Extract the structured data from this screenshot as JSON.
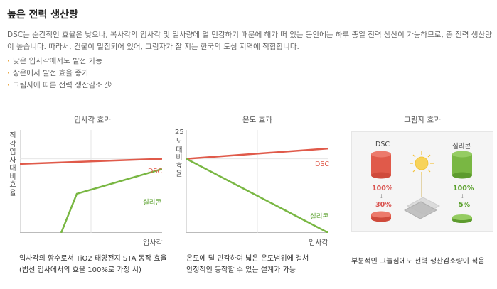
{
  "heading": "높은 전력 생산량",
  "description": "DSC는 순간적인 효율은 낮으나, 복사각의 입사각 및 일사량에 덜 민감하기 때문에 해가 떠 있는 동안에는 하루 종일 전력 생산이 가능하므로, 총 전력 생산량이 높습니다. 따라서, 건물이 밀집되어 있어, 그림자가 잘 지는 한국의 도심 지역에 적합합니다.",
  "bullets": [
    "낮은 입사각에서도 발전 가능",
    "상온에서 발전 효율 증가",
    "그림자에 따른 전력 생산감소 少"
  ],
  "panel1": {
    "title": "입사각 효과",
    "y_label": "직각입사대비 효율",
    "x_label": "입사각",
    "dsc_label": "DSC",
    "si_label": "실리콘",
    "caption_line1": "입사각의 함수로서 TiO2 태양전지 STA 동작 효율",
    "caption_line2": "(법선 입사에서의 효율 100%로 가정 시)"
  },
  "panel2": {
    "title": "온도 효과",
    "y_label_num": "25",
    "y_label": "도대비 효율",
    "x_label": "입사각",
    "dsc_label": "DSC",
    "si_label": "실리콘",
    "caption_line1": "온도에 덜 민감하여 넓은 온도범위에 걸쳐",
    "caption_line2": "안정적인 동작할 수 있는 설계가 가능"
  },
  "panel3": {
    "title": "그림자 효과",
    "dsc_label": "DSC",
    "si_label": "실리콘",
    "dsc_before": "100%",
    "dsc_after": "30%",
    "si_before": "100%",
    "si_after": "5%",
    "caption": "부분적인 그늘짐에도 전력 생산감소량이 적음"
  },
  "colors": {
    "dsc": "#e05a4a",
    "si": "#79b743",
    "accent": "#e8a33a",
    "sun": "#f7d35a"
  },
  "chart_data": [
    {
      "type": "line",
      "title": "입사각 효과",
      "xlabel": "입사각",
      "ylabel": "직각입사대비 효율",
      "series": [
        {
          "name": "DSC",
          "x": [
            0,
            100
          ],
          "y": [
            67,
            72
          ]
        },
        {
          "name": "실리콘",
          "x": [
            29,
            40,
            100
          ],
          "y": [
            0,
            38,
            62
          ]
        }
      ],
      "xlim": [
        0,
        100
      ],
      "ylim": [
        0,
        100
      ]
    },
    {
      "type": "line",
      "title": "온도 효과",
      "xlabel": "입사각",
      "ylabel": "25도대비 효율",
      "series": [
        {
          "name": "DSC",
          "x": [
            0,
            100
          ],
          "y": [
            72,
            82
          ]
        },
        {
          "name": "실리콘",
          "x": [
            0,
            100
          ],
          "y": [
            72,
            0
          ]
        }
      ],
      "xlim": [
        0,
        100
      ],
      "ylim": [
        0,
        100
      ]
    }
  ]
}
